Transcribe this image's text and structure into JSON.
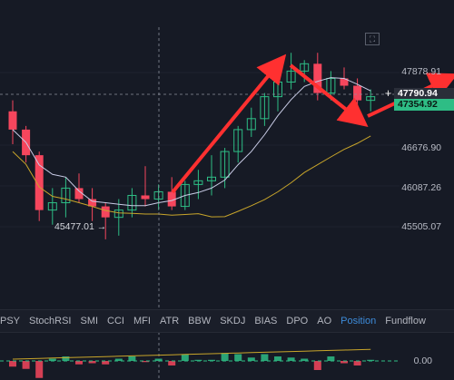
{
  "price_axis": {
    "labels": [
      "47878.91",
      "46676.90",
      "46087.26",
      "45505.07"
    ],
    "crosshair_price": "47790.94",
    "last_price": "47354.92",
    "min_marker": "45477.01 →",
    "plus_button": "+"
  },
  "expand_button": {
    "icon": "expand-icon",
    "glyph": "⛶"
  },
  "indicator_tabs": [
    "PSY",
    "StochRSI",
    "SMI",
    "CCI",
    "MFI",
    "ATR",
    "BBW",
    "SKDJ",
    "BIAS",
    "DPO",
    "AO",
    "Position",
    "Fundflow"
  ],
  "active_tab": "Position",
  "sub_panel": {
    "zero_label": "0.00"
  },
  "colors": {
    "background": "#161a25",
    "up": "#2ebd85",
    "down": "#f6465d",
    "ma_fast": "#c9cce6",
    "ma_slow": "#c8a52a",
    "annotation": "#ff3030",
    "active_tab": "#3d8bd9"
  },
  "chart_data": {
    "type": "candlestick",
    "price_range": [
      45200,
      48300
    ],
    "candles": [
      {
        "o": 47150,
        "h": 47300,
        "l": 46700,
        "c": 46900
      },
      {
        "o": 46900,
        "h": 46950,
        "l": 46450,
        "c": 46550
      },
      {
        "o": 46550,
        "h": 46600,
        "l": 45650,
        "c": 45800
      },
      {
        "o": 45800,
        "h": 46100,
        "l": 45600,
        "c": 45900
      },
      {
        "o": 45900,
        "h": 46250,
        "l": 45700,
        "c": 46100
      },
      {
        "o": 46100,
        "h": 46300,
        "l": 45900,
        "c": 45950
      },
      {
        "o": 45950,
        "h": 46100,
        "l": 45650,
        "c": 45850
      },
      {
        "o": 45850,
        "h": 45900,
        "l": 45400,
        "c": 45700
      },
      {
        "o": 45700,
        "h": 45950,
        "l": 45450,
        "c": 45800
      },
      {
        "o": 45800,
        "h": 46100,
        "l": 45700,
        "c": 46000
      },
      {
        "o": 46000,
        "h": 46400,
        "l": 45850,
        "c": 45950
      },
      {
        "o": 45950,
        "h": 46150,
        "l": 45800,
        "c": 46050
      },
      {
        "o": 46050,
        "h": 46250,
        "l": 45800,
        "c": 45850
      },
      {
        "o": 45850,
        "h": 46200,
        "l": 45800,
        "c": 46150
      },
      {
        "o": 46150,
        "h": 46350,
        "l": 45950,
        "c": 46200
      },
      {
        "o": 46200,
        "h": 46550,
        "l": 46000,
        "c": 46250
      },
      {
        "o": 46250,
        "h": 46650,
        "l": 46100,
        "c": 46600
      },
      {
        "o": 46600,
        "h": 46950,
        "l": 46450,
        "c": 46900
      },
      {
        "o": 46900,
        "h": 47200,
        "l": 46800,
        "c": 47050
      },
      {
        "o": 47050,
        "h": 47400,
        "l": 46950,
        "c": 47350
      },
      {
        "o": 47350,
        "h": 47650,
        "l": 47150,
        "c": 47550
      },
      {
        "o": 47550,
        "h": 47950,
        "l": 47450,
        "c": 47700
      },
      {
        "o": 47700,
        "h": 47850,
        "l": 47550,
        "c": 47800
      },
      {
        "o": 47800,
        "h": 47950,
        "l": 47300,
        "c": 47400
      },
      {
        "o": 47400,
        "h": 47700,
        "l": 47300,
        "c": 47600
      },
      {
        "o": 47600,
        "h": 47750,
        "l": 47450,
        "c": 47500
      },
      {
        "o": 47500,
        "h": 47600,
        "l": 47200,
        "c": 47300
      },
      {
        "o": 47300,
        "h": 47450,
        "l": 47150,
        "c": 47350
      }
    ]
  }
}
